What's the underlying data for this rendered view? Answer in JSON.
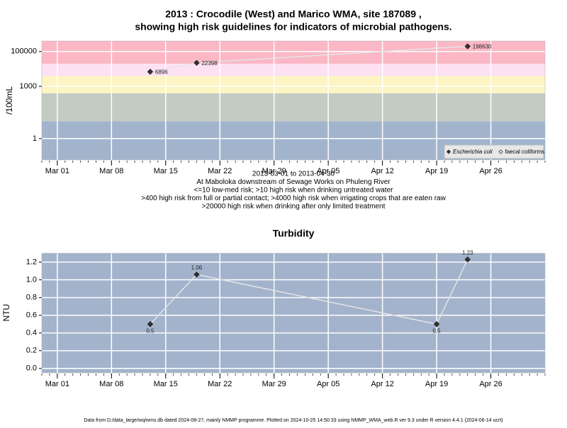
{
  "chart_data": [
    {
      "type": "line",
      "title": [
        "2013 : Crocodile (West) and Marico WMA, site 187089 ,",
        "showing high risk guidelines for indicators of microbial pathogens."
      ],
      "ylabel": "/100mL",
      "log_y": true,
      "x": [
        "2013-03-13",
        "2013-03-19",
        "2013-04-23"
      ],
      "xlim": [
        "2013-02-27",
        "2013-05-03"
      ],
      "xticks": [
        {
          "value": "2013-03-01",
          "label": "Mar 01"
        },
        {
          "value": "2013-03-08",
          "label": "Mar 08"
        },
        {
          "value": "2013-03-15",
          "label": "Mar 15"
        },
        {
          "value": "2013-03-22",
          "label": "Mar 22"
        },
        {
          "value": "2013-03-29",
          "label": "Mar 29"
        },
        {
          "value": "2013-04-05",
          "label": "Apr 05"
        },
        {
          "value": "2013-04-12",
          "label": "Apr 12"
        },
        {
          "value": "2013-04-19",
          "label": "Apr 19"
        },
        {
          "value": "2013-04-26",
          "label": "Apr 26"
        }
      ],
      "ylim": [
        0.06,
        400000
      ],
      "yticks": [
        1,
        1000,
        100000
      ],
      "grid": true,
      "band_thresholds": [
        10,
        400,
        4000,
        20000
      ],
      "band_colors": [
        "#a2b4cc",
        "#c3cbc2",
        "#fdf4c4",
        "#fde1f3",
        "#fbb8c4"
      ],
      "legend": "bottom-right",
      "series": [
        {
          "name": "Escherichia coli",
          "color": "#333333",
          "values": [
            6896,
            22398,
            198630
          ]
        },
        {
          "name": "faecal coliforms",
          "color": "#ffffff",
          "values": [
            null,
            null,
            null
          ]
        }
      ],
      "line_color": "#e4e4e4",
      "notes": [
        "2013-03-01 to 2013-04-30",
        "At Maboloka downstream of Sewage Works on Phuleng River",
        "<=10 low-med risk; >10 high risk when drinking untreated water",
        ">400 high risk from full or partial contact; >4000 high risk when irrigating crops that are eaten raw",
        ">20000 high risk when drinking after only limited treatment"
      ]
    },
    {
      "type": "line",
      "title": "Turbidity",
      "ylabel": "NTU",
      "log_y": false,
      "x": [
        "2013-03-13",
        "2013-03-19",
        "2013-04-19",
        "2013-04-23"
      ],
      "xlim": [
        "2013-02-27",
        "2013-05-03"
      ],
      "xticks": [
        {
          "value": "2013-03-01",
          "label": "Mar 01"
        },
        {
          "value": "2013-03-08",
          "label": "Mar 08"
        },
        {
          "value": "2013-03-15",
          "label": "Mar 15"
        },
        {
          "value": "2013-03-22",
          "label": "Mar 22"
        },
        {
          "value": "2013-03-29",
          "label": "Mar 29"
        },
        {
          "value": "2013-04-05",
          "label": "Apr 05"
        },
        {
          "value": "2013-04-12",
          "label": "Apr 12"
        },
        {
          "value": "2013-04-19",
          "label": "Apr 19"
        },
        {
          "value": "2013-04-26",
          "label": "Apr 26"
        }
      ],
      "ylim": [
        -0.05,
        1.3
      ],
      "yticks": [
        {
          "value": 0,
          "label": "0.0"
        },
        0.2,
        0.4,
        0.6,
        0.8,
        {
          "value": 1,
          "label": "1.0"
        },
        1.2
      ],
      "grid": true,
      "background": "#a3b3cc",
      "series": [
        {
          "name": "Turbidity",
          "color": "#333333",
          "values": [
            0.5,
            1.06,
            0.5,
            1.23
          ]
        }
      ],
      "line_color": "#e4e4e4",
      "value_label_positions": [
        "below",
        "above",
        "below",
        "above"
      ]
    }
  ],
  "footer": "Data from D:/data_large/wq/wms.db dated 2024-08-27, mainly NMMP programme. Plotted on 2024-10-25 14:50:33 using NMMP_WMA_web.R ver 9.3 under R version 4.4.1 (2024-06-14 ucrt)"
}
